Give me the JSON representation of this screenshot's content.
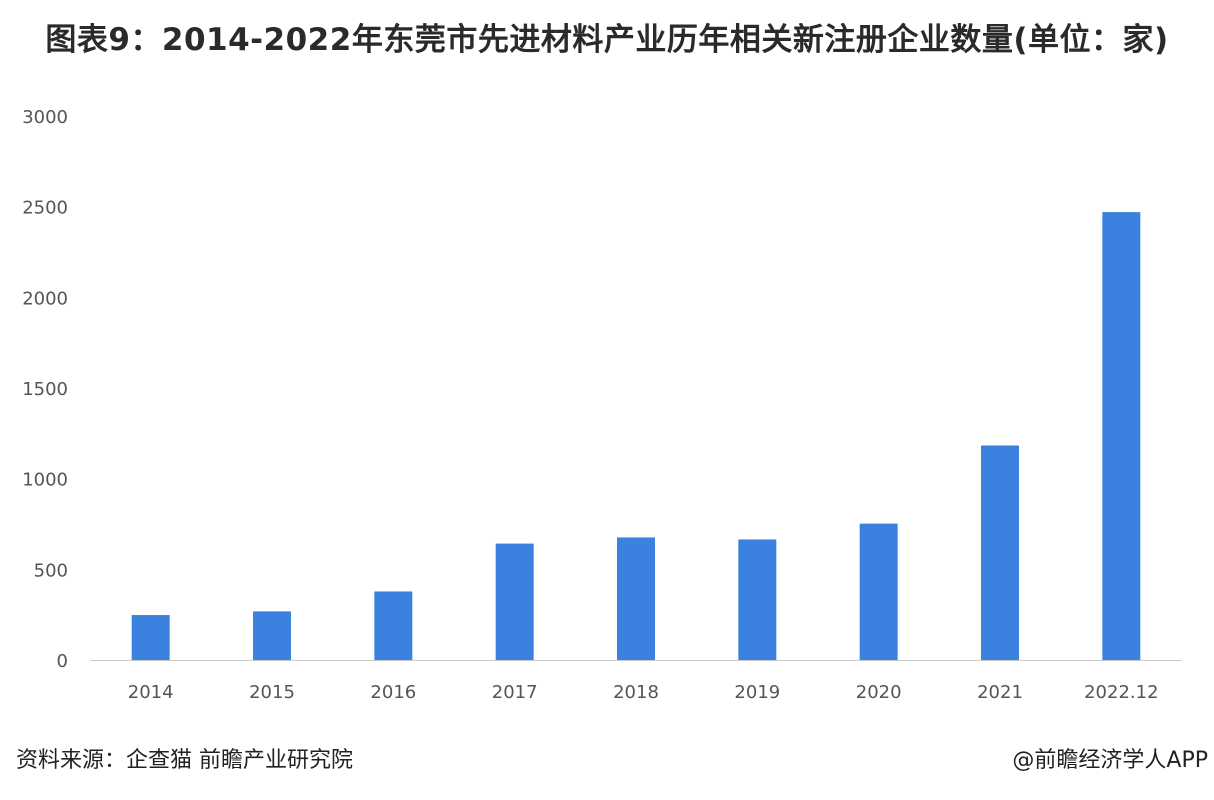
{
  "header": {
    "title": "图表9：2014-2022年东莞市先进材料产业历年相关新注册企业数量(单位：家)"
  },
  "footer": {
    "source": "资料来源：企查猫 前瞻产业研究院",
    "credit": "@前瞻经济学人APP"
  },
  "colors": {
    "bar": "#3b82e0",
    "axis": "#cccccc"
  },
  "chart_data": {
    "type": "bar",
    "categories": [
      "2014",
      "2015",
      "2016",
      "2017",
      "2018",
      "2019",
      "2020",
      "2021",
      "2022.12"
    ],
    "values": [
      248,
      268,
      378,
      642,
      676,
      665,
      752,
      1183,
      2470
    ],
    "yticks": [
      0,
      500,
      1000,
      1500,
      2000,
      2500,
      3000
    ],
    "ylim": [
      0,
      3000
    ],
    "xlabel": "",
    "ylabel": "",
    "grid": false,
    "legend": "none"
  }
}
